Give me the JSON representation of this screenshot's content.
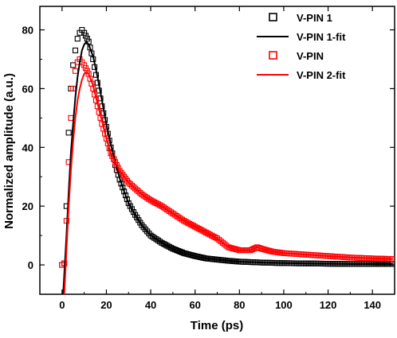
{
  "chart_data": {
    "type": "scatter",
    "title": "",
    "xlabel": "Time (ps)",
    "ylabel": "Normalized amplitude (a.u.)",
    "xlim": [
      -10,
      150
    ],
    "ylim": [
      -10,
      88
    ],
    "x_ticks": [
      0,
      20,
      40,
      60,
      80,
      100,
      120,
      140
    ],
    "y_ticks": [
      0,
      20,
      40,
      60,
      80
    ],
    "x_tick_labels": [
      "0",
      "20",
      "40",
      "60",
      "80",
      "100",
      "120",
      "140"
    ],
    "y_tick_labels": [
      "0",
      "20",
      "40",
      "60",
      "80"
    ],
    "grid": false,
    "legend_position": "top-right",
    "legend": [
      "V-PIN 1",
      "V-PIN 1-fit",
      "V-PIN",
      "V-PIN 2-fit"
    ],
    "series": [
      {
        "name": "V-PIN 1",
        "kind": "markers",
        "marker": "open-square",
        "color": "#000000",
        "x": [
          0,
          1,
          2,
          3,
          4,
          5,
          6,
          7,
          8,
          9,
          10,
          12,
          14,
          16,
          18,
          20,
          22,
          24,
          26,
          28,
          30,
          33,
          36,
          40,
          45,
          50,
          55,
          60,
          65,
          70,
          75,
          80,
          90,
          100,
          110,
          120,
          130,
          140,
          149
        ],
        "y": [
          0,
          0.5,
          20,
          45,
          60,
          68,
          73,
          77,
          79,
          80,
          79,
          76,
          70,
          62,
          54,
          47,
          40,
          34,
          29,
          25,
          21,
          17,
          13.5,
          10,
          7.5,
          5.5,
          4,
          3,
          2.2,
          1.8,
          1.4,
          1.1,
          0.8,
          0.6,
          0.5,
          0.4,
          0.3,
          0.3,
          0.3
        ]
      },
      {
        "name": "V-PIN 1-fit",
        "kind": "line",
        "color": "#000000",
        "x": [
          0.5,
          2,
          3,
          4,
          5,
          6,
          7,
          8,
          9,
          10,
          11,
          12,
          14,
          16,
          18,
          20,
          22,
          24,
          26,
          28,
          30,
          33,
          36,
          40,
          45,
          50,
          55,
          60,
          65,
          70,
          75,
          80,
          90,
          100,
          110,
          120,
          130,
          140,
          149
        ],
        "y": [
          -10,
          10,
          25,
          38,
          48,
          57,
          64,
          69,
          73,
          75,
          76,
          75,
          71,
          64,
          56,
          48,
          41,
          35,
          29.5,
          25,
          21,
          17,
          13.5,
          10,
          7.5,
          5.5,
          4,
          3,
          2.2,
          1.8,
          1.4,
          1.1,
          0.8,
          0.6,
          0.5,
          0.4,
          0.3,
          0.3,
          0.3
        ]
      },
      {
        "name": "V-PIN",
        "kind": "markers",
        "marker": "open-square",
        "color": "#ff0000",
        "x": [
          0,
          1,
          2,
          3,
          4,
          5,
          6,
          7,
          8,
          9,
          10,
          12,
          14,
          16,
          18,
          20,
          22,
          24,
          26,
          28,
          30,
          33,
          36,
          40,
          45,
          50,
          55,
          60,
          65,
          70,
          75,
          80,
          85,
          88,
          90,
          95,
          100,
          110,
          120,
          130,
          140,
          149
        ],
        "y": [
          0,
          0.5,
          15,
          35,
          50,
          60,
          66,
          69,
          70,
          69,
          68,
          65,
          60,
          54,
          48,
          43,
          38,
          35,
          32,
          30,
          28,
          26,
          24,
          22,
          20,
          17.5,
          15,
          13,
          11,
          9,
          6,
          5,
          5,
          6,
          5.5,
          4.5,
          4,
          3.5,
          3,
          2.5,
          2.2,
          2
        ]
      },
      {
        "name": "V-PIN 2-fit",
        "kind": "line",
        "color": "#ff0000",
        "x": [
          1,
          2,
          3,
          4,
          5,
          6,
          7,
          8,
          9,
          10,
          11,
          12,
          14,
          16,
          18,
          20,
          22,
          24,
          26,
          28,
          30,
          33,
          36,
          40,
          45,
          50,
          55,
          60,
          65,
          70,
          75,
          80,
          85,
          88,
          90,
          95,
          100,
          110,
          120,
          130,
          140,
          149
        ],
        "y": [
          -10,
          5,
          20,
          32,
          42,
          50,
          56,
          60,
          63,
          65,
          65.5,
          65,
          61,
          55,
          49,
          43,
          38,
          35,
          32,
          30,
          28,
          26,
          24,
          22,
          20,
          17.5,
          15,
          13,
          11,
          9,
          6,
          5,
          5,
          6,
          5.5,
          4.5,
          4,
          3.5,
          3,
          2.5,
          2.2,
          2
        ]
      }
    ]
  }
}
